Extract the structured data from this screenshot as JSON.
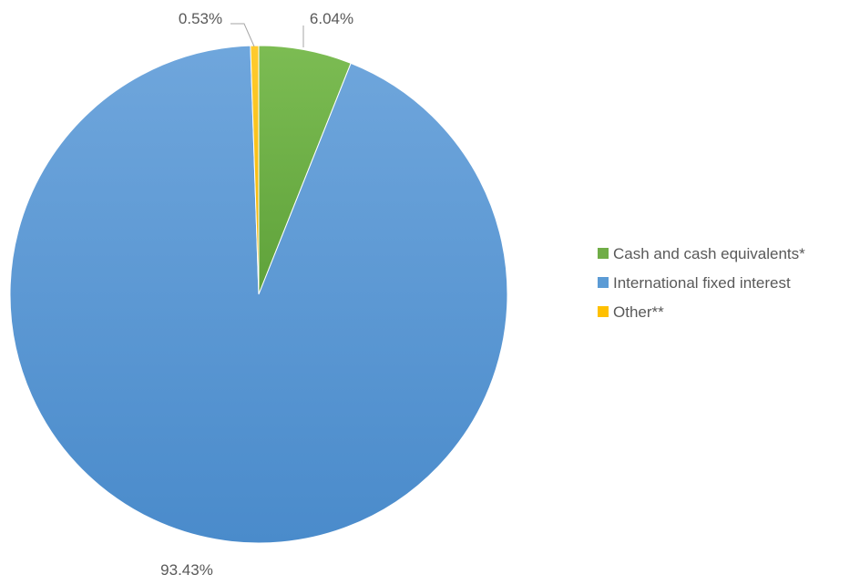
{
  "chart_data": {
    "type": "pie",
    "title": "",
    "categories": [
      "Cash and cash equivalents*",
      "International fixed interest",
      "Other**"
    ],
    "values": [
      6.04,
      93.43,
      0.53
    ],
    "data_labels": [
      "6.04%",
      "93.43%",
      "0.53%"
    ],
    "colors": [
      "#70AD47",
      "#5B9BD5",
      "#FFC000"
    ],
    "start_angle_deg": 0,
    "direction": "clockwise",
    "legend_position": "right",
    "label_color": "#595959",
    "leader_line_color": "#A6A6A6"
  }
}
